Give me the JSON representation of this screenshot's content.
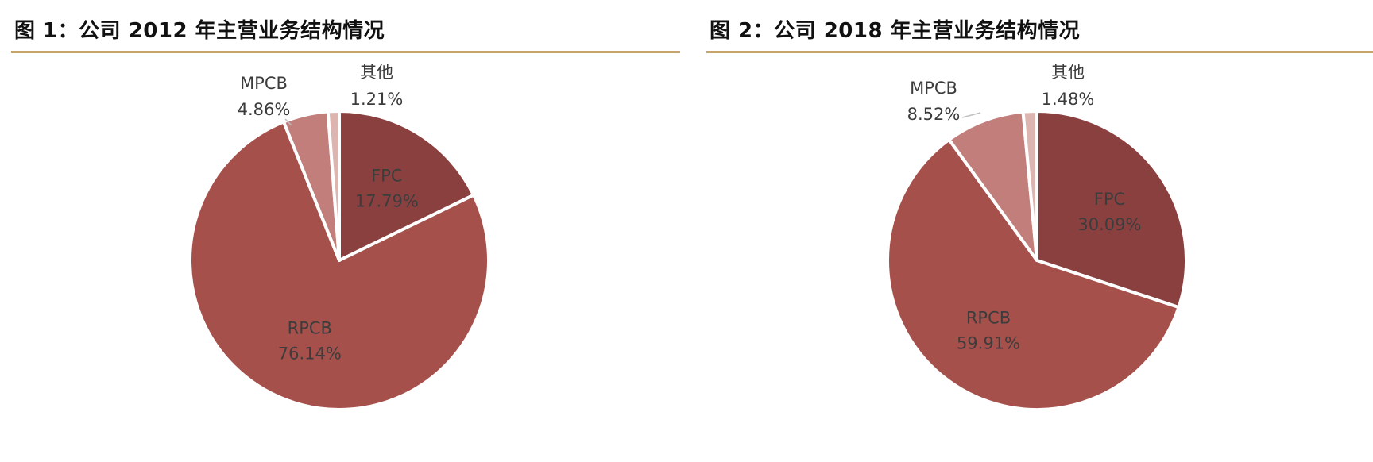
{
  "chart_data": [
    {
      "type": "pie",
      "title": "图 1：公司 2012 年主营业务结构情况",
      "slices": [
        {
          "label": "FPC",
          "value": 17.79,
          "value_label": "17.79%",
          "color": "#8b4040",
          "label_pos": "inside"
        },
        {
          "label": "RPCB",
          "value": 76.14,
          "value_label": "76.14%",
          "color": "#a5504b",
          "label_pos": "inside"
        },
        {
          "label": "MPCB",
          "value": 4.86,
          "value_label": "4.86%",
          "color": "#c17e7a",
          "label_pos": "outside"
        },
        {
          "label": "其他",
          "value": 1.21,
          "value_label": "1.21%",
          "color": "#dcb4b0",
          "label_pos": "outside"
        }
      ]
    },
    {
      "type": "pie",
      "title": "图 2：公司 2018 年主营业务结构情况",
      "slices": [
        {
          "label": "FPC",
          "value": 30.09,
          "value_label": "30.09%",
          "color": "#8b4040",
          "label_pos": "inside"
        },
        {
          "label": "RPCB",
          "value": 59.91,
          "value_label": "59.91%",
          "color": "#a5504b",
          "label_pos": "inside"
        },
        {
          "label": "MPCB",
          "value": 8.52,
          "value_label": "8.52%",
          "color": "#c17e7a",
          "label_pos": "outside"
        },
        {
          "label": "其他",
          "value": 1.48,
          "value_label": "1.48%",
          "color": "#dcb4b0",
          "label_pos": "outside"
        }
      ]
    }
  ],
  "colors": {
    "rule": "#c4a46a",
    "slice_border": "#ffffff"
  }
}
